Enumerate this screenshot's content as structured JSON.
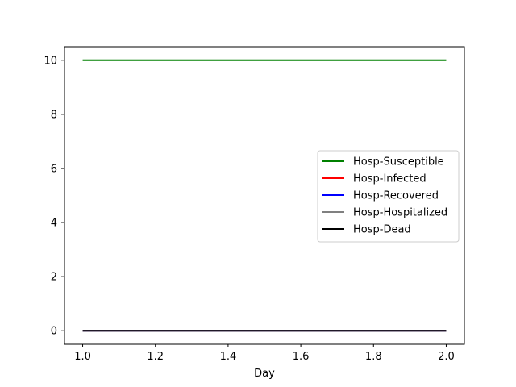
{
  "chart_data": {
    "type": "line",
    "title": "",
    "xlabel": "Day",
    "ylabel": "",
    "xlim": [
      0.95,
      2.05
    ],
    "ylim": [
      -0.5,
      10.5
    ],
    "xticks": [
      1.0,
      1.2,
      1.4,
      1.6,
      1.8,
      2.0
    ],
    "xtick_labels": [
      "1.0",
      "1.2",
      "1.4",
      "1.6",
      "1.8",
      "2.0"
    ],
    "yticks": [
      0,
      2,
      4,
      6,
      8,
      10
    ],
    "ytick_labels": [
      "0",
      "2",
      "4",
      "6",
      "8",
      "10"
    ],
    "grid": false,
    "legend_position": "center-right",
    "x": [
      1.0,
      2.0
    ],
    "series": [
      {
        "name": "Hosp-Susceptible",
        "color": "#008000",
        "values": [
          10,
          10
        ]
      },
      {
        "name": "Hosp-Infected",
        "color": "#ff0000",
        "values": [
          0,
          0
        ]
      },
      {
        "name": "Hosp-Recovered",
        "color": "#0000ff",
        "values": [
          0,
          0
        ]
      },
      {
        "name": "Hosp-Hospitalized",
        "color": "#808080",
        "values": [
          0,
          0
        ]
      },
      {
        "name": "Hosp-Dead",
        "color": "#000000",
        "values": [
          0,
          0
        ]
      }
    ]
  }
}
